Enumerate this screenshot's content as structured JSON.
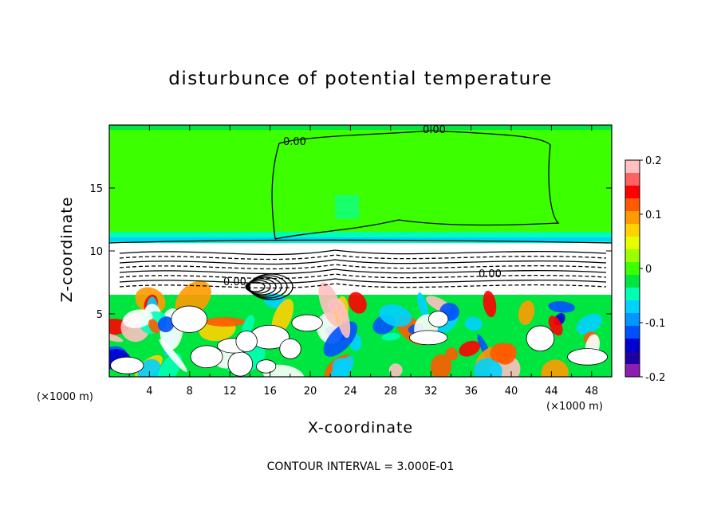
{
  "chart_data": {
    "type": "heatmap",
    "title": "disturbunce of potential temperature",
    "xlabel": "X-coordinate",
    "ylabel": "Z-coordinate",
    "x_unit_left": "(×1000 m)",
    "x_unit_right": "(×1000 m)",
    "xlim": [
      0,
      50
    ],
    "ylim": [
      0,
      20
    ],
    "xticks": [
      "4",
      "8",
      "12",
      "16",
      "20",
      "24",
      "28",
      "32",
      "36",
      "40",
      "44",
      "48"
    ],
    "yticks": [
      "5",
      "10",
      "15"
    ],
    "colorbar": {
      "range": [
        -0.2,
        0.2
      ],
      "tick_labels": [
        "0.2",
        "0.1",
        "0",
        "-0.1",
        "-0.2"
      ],
      "colors": [
        "#ffc0c0",
        "#ff6060",
        "#ff0000",
        "#ff5a00",
        "#ff9a00",
        "#ffd200",
        "#e6ff00",
        "#9cff00",
        "#3cff00",
        "#00e640",
        "#00ffb4",
        "#00d2ff",
        "#0096ff",
        "#0050ff",
        "#0000d2",
        "#1e00a0",
        "#8c1eb4"
      ]
    },
    "contour_label_text": "0.00",
    "footer": "CONTOUR INTERVAL = 3.000E-01"
  }
}
